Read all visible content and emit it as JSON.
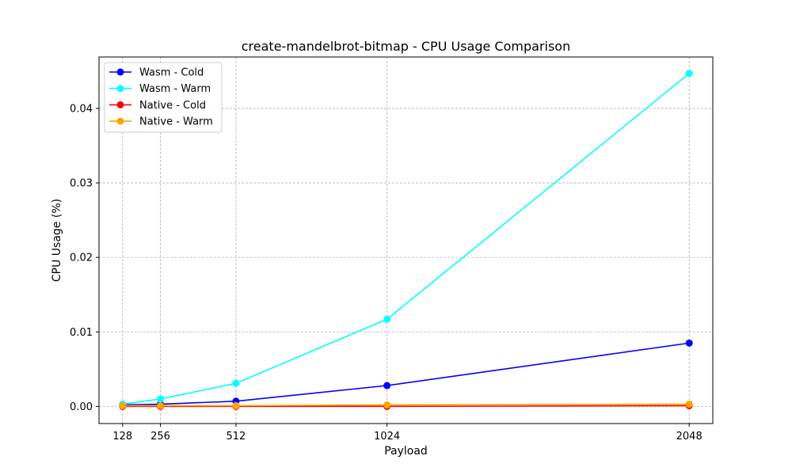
{
  "chart_data": {
    "type": "line",
    "title": "create-mandelbrot-bitmap - CPU Usage Comparison",
    "xlabel": "Payload",
    "ylabel": "CPU Usage (%)",
    "x": [
      128,
      256,
      512,
      1024,
      2048
    ],
    "x_tick_labels": [
      "128",
      "256",
      "512",
      "1024",
      "2048"
    ],
    "xlim": [
      48,
      2128
    ],
    "y_ticks": [
      0.0,
      0.01,
      0.02,
      0.03,
      0.04
    ],
    "y_tick_labels": [
      "0.00",
      "0.01",
      "0.02",
      "0.03",
      "0.04"
    ],
    "ylim": [
      -0.0023,
      0.0469
    ],
    "grid": true,
    "legend_position": "upper-left",
    "series": [
      {
        "name": "Wasm - Cold",
        "color": "#0000ff",
        "values": [
          0.0002,
          0.0003,
          0.0007,
          0.0028,
          0.0085
        ]
      },
      {
        "name": "Wasm - Warm",
        "color": "#00ffff",
        "values": [
          0.0003,
          0.001,
          0.0031,
          0.0117,
          0.0447
        ]
      },
      {
        "name": "Native - Cold",
        "color": "#ff0000",
        "values": [
          0.0,
          0.0,
          0.0,
          0.0,
          0.0001
        ]
      },
      {
        "name": "Native - Warm",
        "color": "#ffa500",
        "values": [
          0.0001,
          0.0001,
          0.0001,
          0.0002,
          0.0003
        ]
      }
    ]
  }
}
